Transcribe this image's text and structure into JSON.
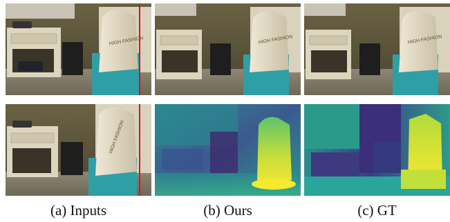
{
  "figure": {
    "bag_text": "HIGH FASHION",
    "columns": [
      {
        "caption": "(a) Inputs"
      },
      {
        "caption": "(b) Ours"
      },
      {
        "caption": "(c) GT"
      }
    ],
    "colors": {
      "wall": "#5a5238",
      "floor": "#8e8672",
      "furniture": "#ddd6bf",
      "bag": "#e3dbc6",
      "bin": "#2f9fa6",
      "epipolar_line": "#e0101a",
      "depth_far": "#3b2a6e",
      "depth_mid": "#2a8a8c",
      "depth_near": "#e8e23a"
    }
  }
}
